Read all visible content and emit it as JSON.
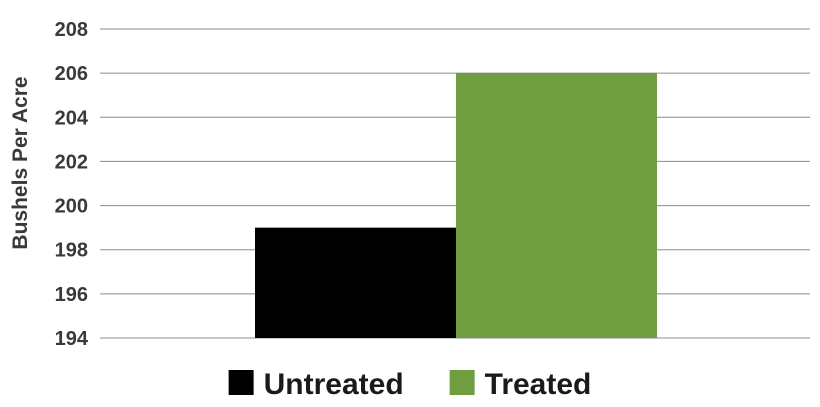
{
  "chart_data": {
    "type": "bar",
    "title": "",
    "xlabel": "",
    "ylabel": "Bushels Per Acre",
    "ylim": [
      194,
      208
    ],
    "yticks": [
      194,
      196,
      198,
      200,
      202,
      204,
      206,
      208
    ],
    "grid": true,
    "legend_position": "bottom",
    "series": [
      {
        "name": "Untreated",
        "value": 199,
        "color": "#000000"
      },
      {
        "name": "Treated",
        "value": 206,
        "color": "#6e9e3f"
      }
    ]
  }
}
